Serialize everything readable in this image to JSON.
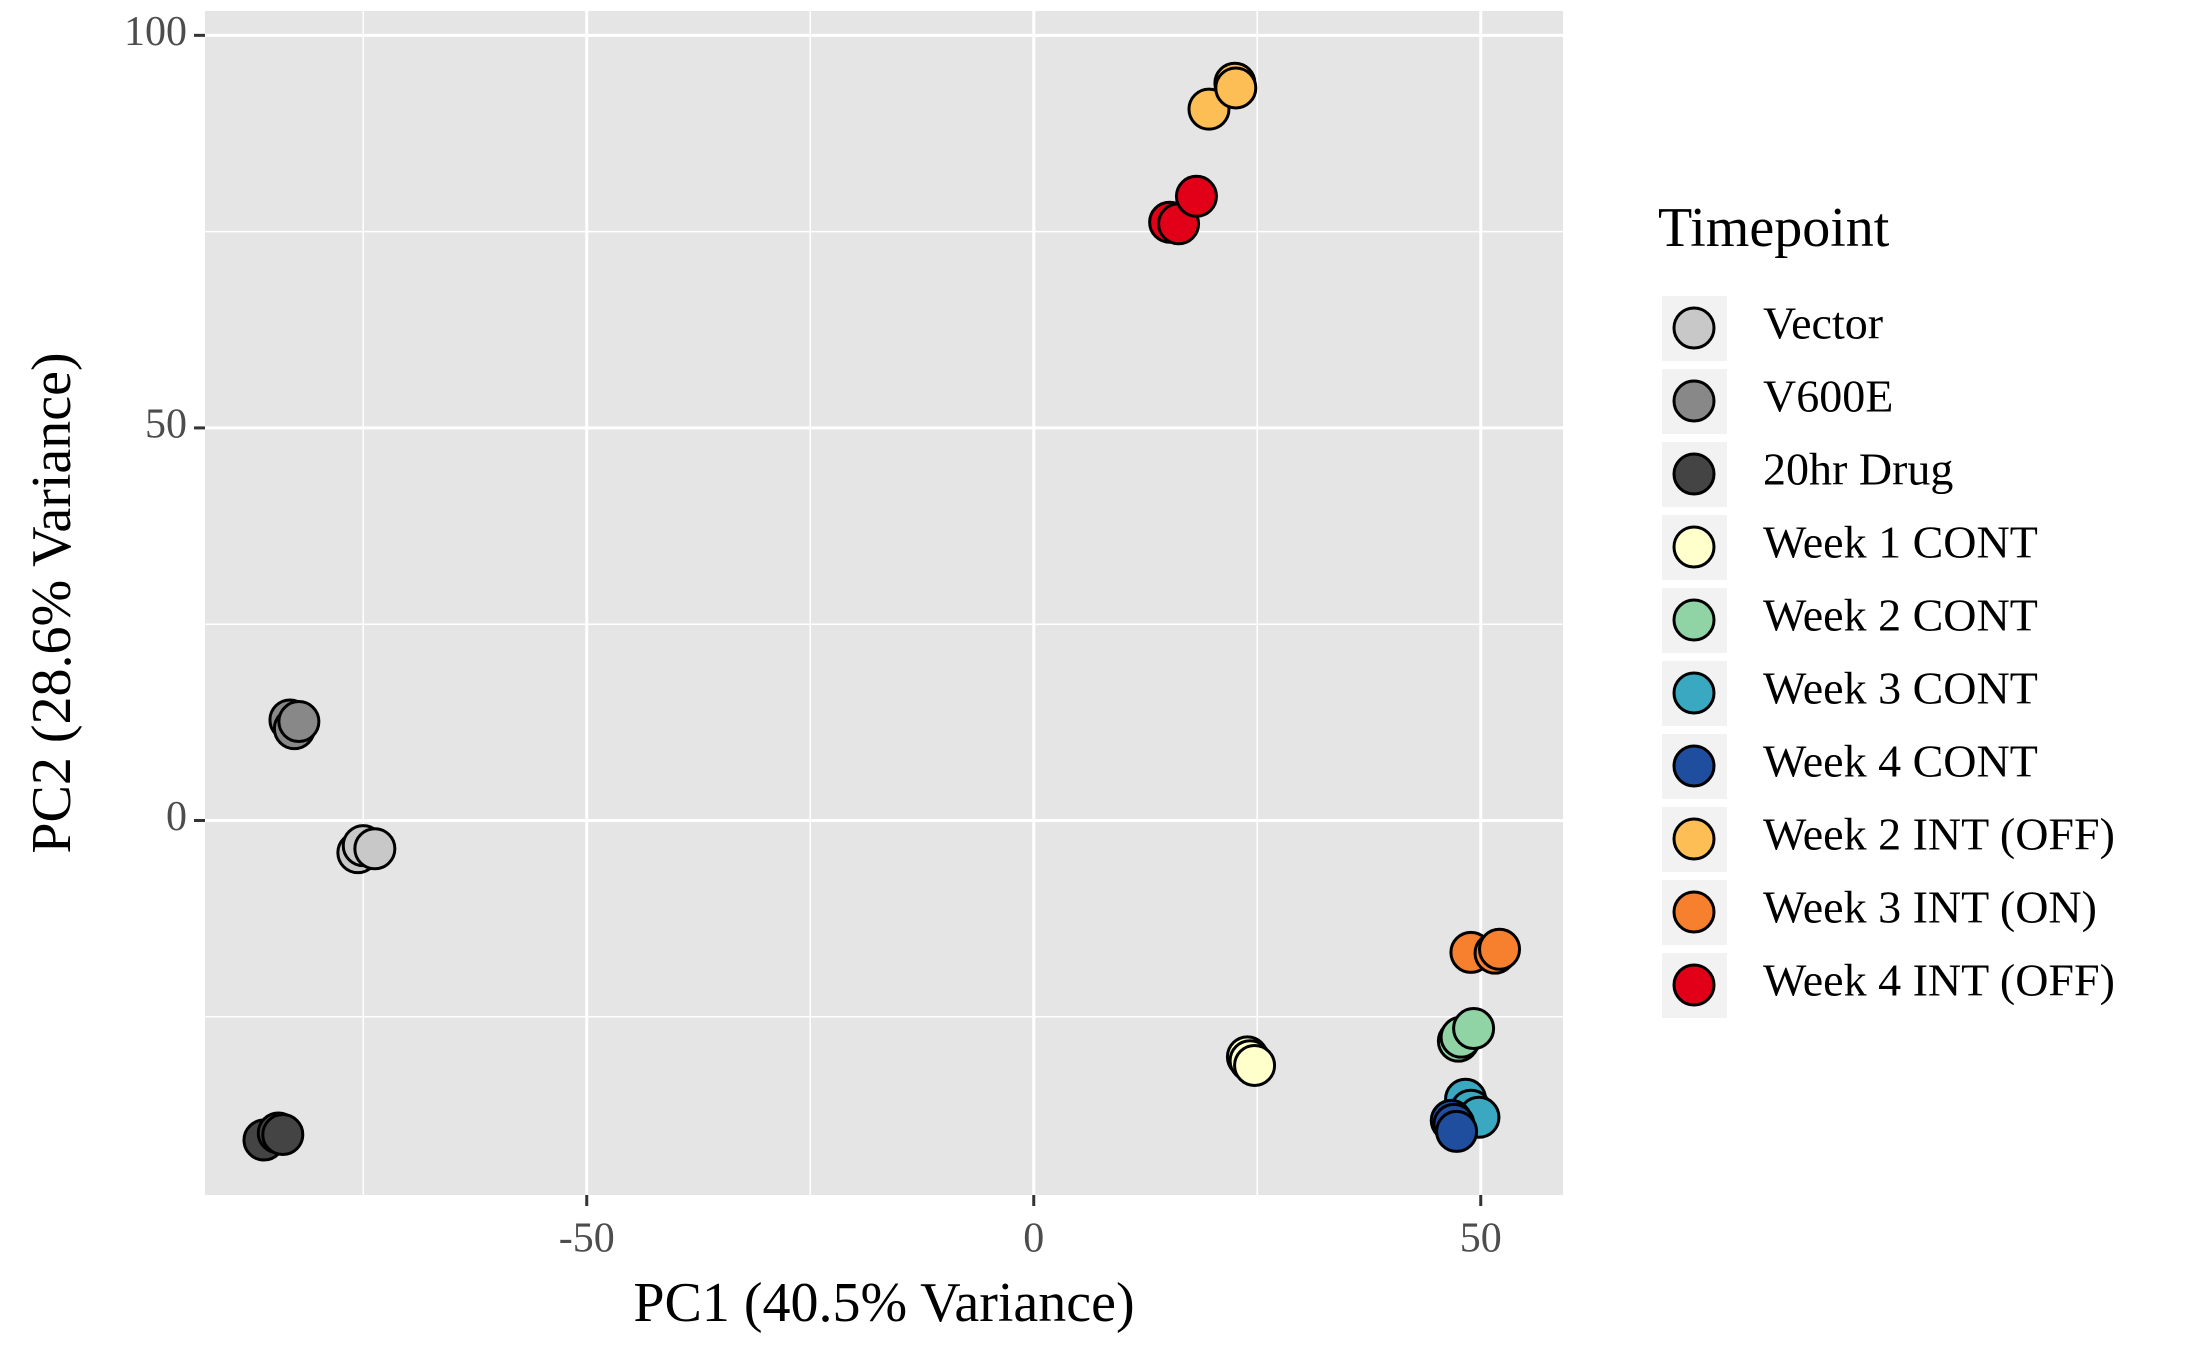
{
  "chart_data": {
    "type": "scatter",
    "x_label": "PC1 (40.5% Variance)",
    "y_label": "PC2 (28.6% Variance)",
    "legend_title": "Timepoint",
    "xlim": [
      -92.7,
      59.2
    ],
    "ylim": [
      -47.7,
      103.1
    ],
    "xticks": [
      -50,
      0,
      50
    ],
    "yticks": [
      0,
      50,
      100
    ],
    "grid": true,
    "legend": "right",
    "series": [
      {
        "name": "Vector",
        "color": "#c8c8c8",
        "x": [
          -75.6,
          -75.0,
          -73.7
        ],
        "values": [
          -4.1,
          -3.2,
          -3.6
        ]
      },
      {
        "name": "V600E",
        "color": "#888888",
        "x": [
          -83.2,
          -82.7,
          -82.2
        ],
        "values": [
          12.8,
          11.7,
          12.6
        ]
      },
      {
        "name": "20hr Drug",
        "color": "#444444",
        "x": [
          -86.1,
          -84.5,
          -84.0
        ],
        "values": [
          -40.7,
          -39.8,
          -40.0
        ]
      },
      {
        "name": "Week 1 CONT",
        "color": "#ffffcc",
        "x": [
          23.9,
          24.2,
          24.7
        ],
        "values": [
          -30.1,
          -30.6,
          -31.2
        ]
      },
      {
        "name": "Week 2 CONT",
        "color": "#90d4a6",
        "x": [
          47.5,
          47.8,
          49.2
        ],
        "values": [
          -28.1,
          -27.6,
          -26.5
        ]
      },
      {
        "name": "Week 3 CONT",
        "color": "#3aa8c1",
        "x": [
          48.3,
          48.9,
          49.8
        ],
        "values": [
          -35.5,
          -36.9,
          -37.8
        ]
      },
      {
        "name": "Week 4 CONT",
        "color": "#1f4e9e",
        "x": [
          46.7,
          47.0,
          47.3
        ],
        "values": [
          -38.2,
          -38.7,
          -39.6
        ]
      },
      {
        "name": "Week 2 INT (OFF)",
        "color": "#fdbe55",
        "x": [
          19.6,
          22.5,
          22.6
        ],
        "values": [
          90.6,
          93.9,
          93.3
        ]
      },
      {
        "name": "Week 3 INT (ON)",
        "color": "#f6802d",
        "x": [
          48.9,
          51.6,
          52.1
        ],
        "values": [
          -16.8,
          -16.9,
          -16.4
        ]
      },
      {
        "name": "Week 4 INT (OFF)",
        "color": "#e10018",
        "x": [
          15.2,
          16.2,
          18.2
        ],
        "values": [
          76.2,
          76.0,
          79.5
        ]
      }
    ]
  }
}
